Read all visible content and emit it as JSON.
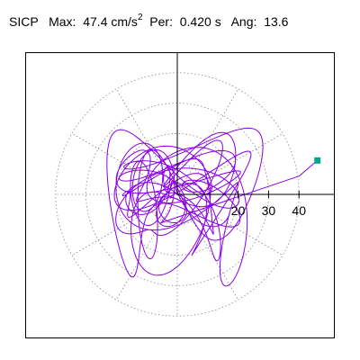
{
  "header": {
    "station": "SICP",
    "max_label": "Max:",
    "max_value": "47.4",
    "max_unit": "cm/s",
    "max_unit_exp": "2",
    "per_label": "Per:",
    "per_value": "0.420",
    "per_unit": "s",
    "ang_label": "Ang:",
    "ang_value": "13.6"
  },
  "chart_data": {
    "type": "scatter",
    "title": "",
    "plot": "polar particle-motion trace (hodogram)",
    "radial_ticks": [
      20,
      30,
      40
    ],
    "rings": [
      10,
      20,
      30,
      40
    ],
    "spokes_deg": [
      0,
      30,
      60,
      90,
      120,
      150,
      180,
      210,
      240,
      270,
      300,
      330
    ],
    "grid": true,
    "peak": {
      "amplitude": 47.4,
      "angle_deg": 13.6
    },
    "colors": {
      "trace": "#8a00e6",
      "peak_marker": "#00a88a",
      "grid": "#888888",
      "axis": "#000000"
    }
  }
}
